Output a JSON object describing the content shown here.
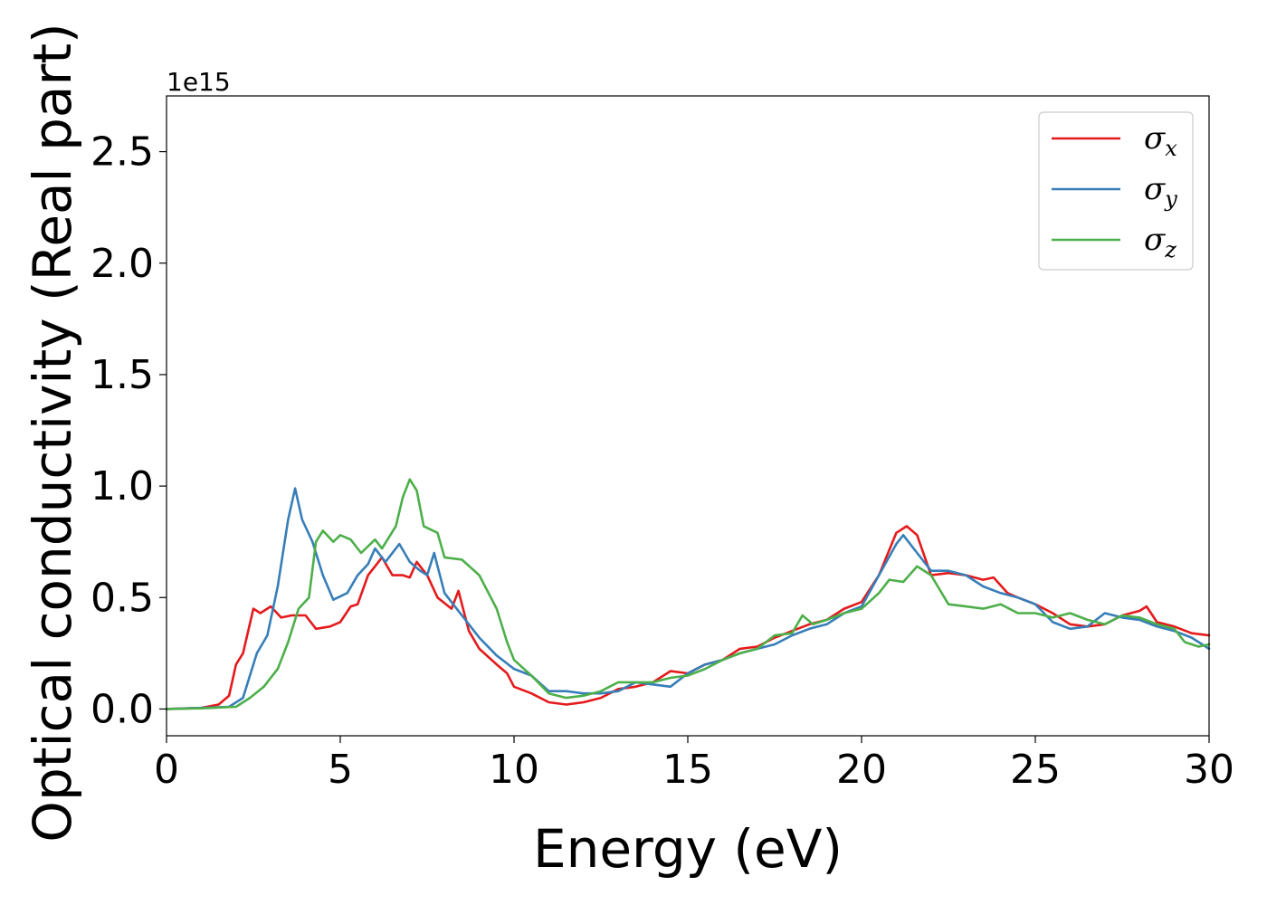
{
  "chart_data": {
    "type": "line",
    "xlabel": "Energy (eV)",
    "ylabel": "Optical conductivity (Real part)",
    "y_offset_text": "1e15",
    "xlim": [
      0,
      30
    ],
    "ylim": [
      -0.12,
      2.75
    ],
    "y_scale_factor": 1000000000000000.0,
    "xticks": [
      0,
      5,
      10,
      15,
      20,
      25,
      30
    ],
    "xtick_labels": [
      "0",
      "5",
      "10",
      "15",
      "20",
      "25",
      "30"
    ],
    "yticks": [
      0.0,
      0.5,
      1.0,
      1.5,
      2.0,
      2.5
    ],
    "ytick_labels": [
      "0.0",
      "0.5",
      "1.0",
      "1.5",
      "2.0",
      "2.5"
    ],
    "grid": false,
    "legend_position": "top-right",
    "series": [
      {
        "name": "σx",
        "symbol": "σ",
        "subscript": "x",
        "color": "#e41a1c",
        "points": [
          [
            0,
            0
          ],
          [
            1,
            0.005
          ],
          [
            1.5,
            0.02
          ],
          [
            1.8,
            0.06
          ],
          [
            2.0,
            0.2
          ],
          [
            2.2,
            0.25
          ],
          [
            2.5,
            0.45
          ],
          [
            2.7,
            0.43
          ],
          [
            3.0,
            0.46
          ],
          [
            3.3,
            0.41
          ],
          [
            3.6,
            0.42
          ],
          [
            4.0,
            0.42
          ],
          [
            4.3,
            0.36
          ],
          [
            4.7,
            0.37
          ],
          [
            5.0,
            0.39
          ],
          [
            5.3,
            0.46
          ],
          [
            5.5,
            0.47
          ],
          [
            5.8,
            0.6
          ],
          [
            6.0,
            0.64
          ],
          [
            6.2,
            0.68
          ],
          [
            6.5,
            0.6
          ],
          [
            6.8,
            0.6
          ],
          [
            7.0,
            0.59
          ],
          [
            7.2,
            0.66
          ],
          [
            7.5,
            0.6
          ],
          [
            7.8,
            0.5
          ],
          [
            8.2,
            0.45
          ],
          [
            8.4,
            0.53
          ],
          [
            8.7,
            0.35
          ],
          [
            9.0,
            0.27
          ],
          [
            9.5,
            0.2
          ],
          [
            9.8,
            0.16
          ],
          [
            10.0,
            0.1
          ],
          [
            10.5,
            0.07
          ],
          [
            11.0,
            0.03
          ],
          [
            11.5,
            0.02
          ],
          [
            12.0,
            0.03
          ],
          [
            12.5,
            0.05
          ],
          [
            13.0,
            0.09
          ],
          [
            13.5,
            0.1
          ],
          [
            14.0,
            0.12
          ],
          [
            14.5,
            0.17
          ],
          [
            15.0,
            0.16
          ],
          [
            15.5,
            0.2
          ],
          [
            16.0,
            0.22
          ],
          [
            16.5,
            0.27
          ],
          [
            17.0,
            0.28
          ],
          [
            17.5,
            0.32
          ],
          [
            18.0,
            0.35
          ],
          [
            18.5,
            0.38
          ],
          [
            19.0,
            0.4
          ],
          [
            19.5,
            0.45
          ],
          [
            20.0,
            0.48
          ],
          [
            20.5,
            0.6
          ],
          [
            21.0,
            0.79
          ],
          [
            21.3,
            0.82
          ],
          [
            21.6,
            0.78
          ],
          [
            22.0,
            0.6
          ],
          [
            22.5,
            0.61
          ],
          [
            23.0,
            0.6
          ],
          [
            23.5,
            0.58
          ],
          [
            23.8,
            0.59
          ],
          [
            24.2,
            0.52
          ],
          [
            24.5,
            0.5
          ],
          [
            25.0,
            0.47
          ],
          [
            25.5,
            0.43
          ],
          [
            26.0,
            0.38
          ],
          [
            26.5,
            0.37
          ],
          [
            27.0,
            0.38
          ],
          [
            27.5,
            0.42
          ],
          [
            28.0,
            0.44
          ],
          [
            28.2,
            0.46
          ],
          [
            28.5,
            0.39
          ],
          [
            29.0,
            0.37
          ],
          [
            29.5,
            0.34
          ],
          [
            30.0,
            0.33
          ]
        ]
      },
      {
        "name": "σy",
        "symbol": "σ",
        "subscript": "y",
        "color": "#377eb8",
        "points": [
          [
            0,
            0
          ],
          [
            1,
            0.005
          ],
          [
            1.8,
            0.01
          ],
          [
            2.2,
            0.05
          ],
          [
            2.6,
            0.25
          ],
          [
            2.9,
            0.33
          ],
          [
            3.2,
            0.55
          ],
          [
            3.5,
            0.85
          ],
          [
            3.7,
            0.99
          ],
          [
            3.9,
            0.85
          ],
          [
            4.2,
            0.75
          ],
          [
            4.5,
            0.6
          ],
          [
            4.8,
            0.49
          ],
          [
            5.2,
            0.52
          ],
          [
            5.5,
            0.6
          ],
          [
            5.8,
            0.65
          ],
          [
            6.0,
            0.72
          ],
          [
            6.3,
            0.66
          ],
          [
            6.7,
            0.74
          ],
          [
            7.0,
            0.66
          ],
          [
            7.3,
            0.62
          ],
          [
            7.5,
            0.6
          ],
          [
            7.7,
            0.7
          ],
          [
            8.0,
            0.52
          ],
          [
            8.5,
            0.42
          ],
          [
            9.0,
            0.32
          ],
          [
            9.5,
            0.24
          ],
          [
            10.0,
            0.18
          ],
          [
            10.5,
            0.15
          ],
          [
            11.0,
            0.08
          ],
          [
            11.5,
            0.08
          ],
          [
            12.0,
            0.07
          ],
          [
            12.5,
            0.07
          ],
          [
            13.0,
            0.08
          ],
          [
            13.5,
            0.12
          ],
          [
            14.0,
            0.11
          ],
          [
            14.5,
            0.1
          ],
          [
            15.0,
            0.16
          ],
          [
            15.5,
            0.2
          ],
          [
            16.0,
            0.22
          ],
          [
            16.5,
            0.25
          ],
          [
            17.0,
            0.27
          ],
          [
            17.5,
            0.29
          ],
          [
            18.0,
            0.33
          ],
          [
            18.5,
            0.36
          ],
          [
            19.0,
            0.38
          ],
          [
            19.5,
            0.43
          ],
          [
            20.0,
            0.46
          ],
          [
            20.5,
            0.6
          ],
          [
            21.0,
            0.74
          ],
          [
            21.2,
            0.78
          ],
          [
            21.6,
            0.7
          ],
          [
            22.0,
            0.62
          ],
          [
            22.5,
            0.62
          ],
          [
            23.0,
            0.6
          ],
          [
            23.5,
            0.55
          ],
          [
            24.0,
            0.52
          ],
          [
            24.5,
            0.5
          ],
          [
            25.0,
            0.47
          ],
          [
            25.5,
            0.39
          ],
          [
            26.0,
            0.36
          ],
          [
            26.5,
            0.37
          ],
          [
            27.0,
            0.43
          ],
          [
            27.5,
            0.41
          ],
          [
            28.0,
            0.4
          ],
          [
            28.5,
            0.37
          ],
          [
            29.0,
            0.35
          ],
          [
            29.5,
            0.32
          ],
          [
            30.0,
            0.27
          ]
        ]
      },
      {
        "name": "σz",
        "symbol": "σ",
        "subscript": "z",
        "color": "#4daf4a",
        "points": [
          [
            0,
            0
          ],
          [
            1,
            0.003
          ],
          [
            2.0,
            0.01
          ],
          [
            2.4,
            0.05
          ],
          [
            2.8,
            0.1
          ],
          [
            3.2,
            0.18
          ],
          [
            3.5,
            0.3
          ],
          [
            3.8,
            0.45
          ],
          [
            4.1,
            0.5
          ],
          [
            4.3,
            0.75
          ],
          [
            4.5,
            0.8
          ],
          [
            4.8,
            0.75
          ],
          [
            5.0,
            0.78
          ],
          [
            5.3,
            0.76
          ],
          [
            5.6,
            0.7
          ],
          [
            6.0,
            0.76
          ],
          [
            6.2,
            0.72
          ],
          [
            6.6,
            0.82
          ],
          [
            6.8,
            0.95
          ],
          [
            7.0,
            1.03
          ],
          [
            7.2,
            0.98
          ],
          [
            7.4,
            0.82
          ],
          [
            7.8,
            0.79
          ],
          [
            8.0,
            0.68
          ],
          [
            8.5,
            0.67
          ],
          [
            9.0,
            0.6
          ],
          [
            9.5,
            0.45
          ],
          [
            9.8,
            0.3
          ],
          [
            10.0,
            0.22
          ],
          [
            10.5,
            0.15
          ],
          [
            11.0,
            0.07
          ],
          [
            11.5,
            0.05
          ],
          [
            12.0,
            0.06
          ],
          [
            12.5,
            0.08
          ],
          [
            13.0,
            0.12
          ],
          [
            13.5,
            0.12
          ],
          [
            14.0,
            0.12
          ],
          [
            14.5,
            0.14
          ],
          [
            15.0,
            0.15
          ],
          [
            15.5,
            0.18
          ],
          [
            16.0,
            0.22
          ],
          [
            16.5,
            0.25
          ],
          [
            17.0,
            0.27
          ],
          [
            17.5,
            0.33
          ],
          [
            18.0,
            0.34
          ],
          [
            18.3,
            0.42
          ],
          [
            18.6,
            0.38
          ],
          [
            19.0,
            0.4
          ],
          [
            19.5,
            0.43
          ],
          [
            20.0,
            0.45
          ],
          [
            20.5,
            0.52
          ],
          [
            20.8,
            0.58
          ],
          [
            21.2,
            0.57
          ],
          [
            21.6,
            0.64
          ],
          [
            22.0,
            0.6
          ],
          [
            22.5,
            0.47
          ],
          [
            23.0,
            0.46
          ],
          [
            23.5,
            0.45
          ],
          [
            24.0,
            0.47
          ],
          [
            24.5,
            0.43
          ],
          [
            25.0,
            0.43
          ],
          [
            25.5,
            0.41
          ],
          [
            26.0,
            0.43
          ],
          [
            26.5,
            0.4
          ],
          [
            27.0,
            0.38
          ],
          [
            27.5,
            0.42
          ],
          [
            28.0,
            0.41
          ],
          [
            28.5,
            0.38
          ],
          [
            29.0,
            0.36
          ],
          [
            29.3,
            0.3
          ],
          [
            29.7,
            0.28
          ],
          [
            30.0,
            0.29
          ]
        ]
      }
    ]
  }
}
